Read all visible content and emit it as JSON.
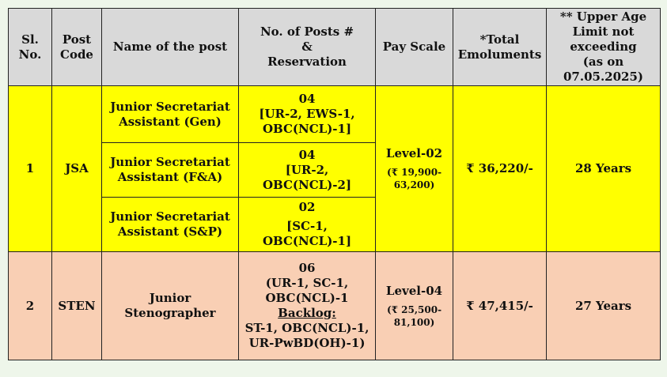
{
  "headers": {
    "sl": [
      "Sl.",
      "No."
    ],
    "post_code": [
      "Post",
      "Code"
    ],
    "name": "Name of the post",
    "posts": [
      "No. of Posts #",
      "&",
      "Reservation"
    ],
    "pay": "Pay Scale",
    "emol": [
      "*Total",
      "Emoluments"
    ],
    "age": [
      "** Upper Age",
      "Limit not",
      "exceeding",
      "(as on",
      "07.05.2025)"
    ]
  },
  "rows": [
    {
      "sl": "1",
      "code": "JSA",
      "pay_level": "Level-02",
      "pay_range": [
        "(₹ 19,900-",
        "63,200)"
      ],
      "emol": "₹ 36,220/-",
      "age": "28 Years",
      "posts": [
        {
          "name": [
            "Junior Secretariat",
            "Assistant (Gen)"
          ],
          "count": [
            "04",
            "[UR-2, EWS-1,",
            "OBC(NCL)-1]"
          ]
        },
        {
          "name": [
            "Junior Secretariat",
            "Assistant (F&A)"
          ],
          "count": [
            "04",
            "[UR-2, OBC(NCL)-2]"
          ]
        },
        {
          "name": [
            "Junior Secretariat",
            "Assistant (S&P)"
          ],
          "count": [
            "02",
            "[SC-1, OBC(NCL)-1]"
          ]
        }
      ]
    },
    {
      "sl": "2",
      "code": "STEN",
      "name": [
        "Junior",
        "Stenographer"
      ],
      "count": [
        "06",
        "(UR-1, SC-1,",
        "OBC(NCL)-1"
      ],
      "backlog_label": "Backlog:",
      "backlog": [
        "ST-1, OBC(NCL)-1,",
        "UR-PwBD(OH)-1)"
      ],
      "pay_level": "Level-04",
      "pay_range": [
        "(₹ 25,500-",
        "81,100)"
      ],
      "emol": "₹ 47,415/-",
      "age": "27 Years"
    }
  ]
}
